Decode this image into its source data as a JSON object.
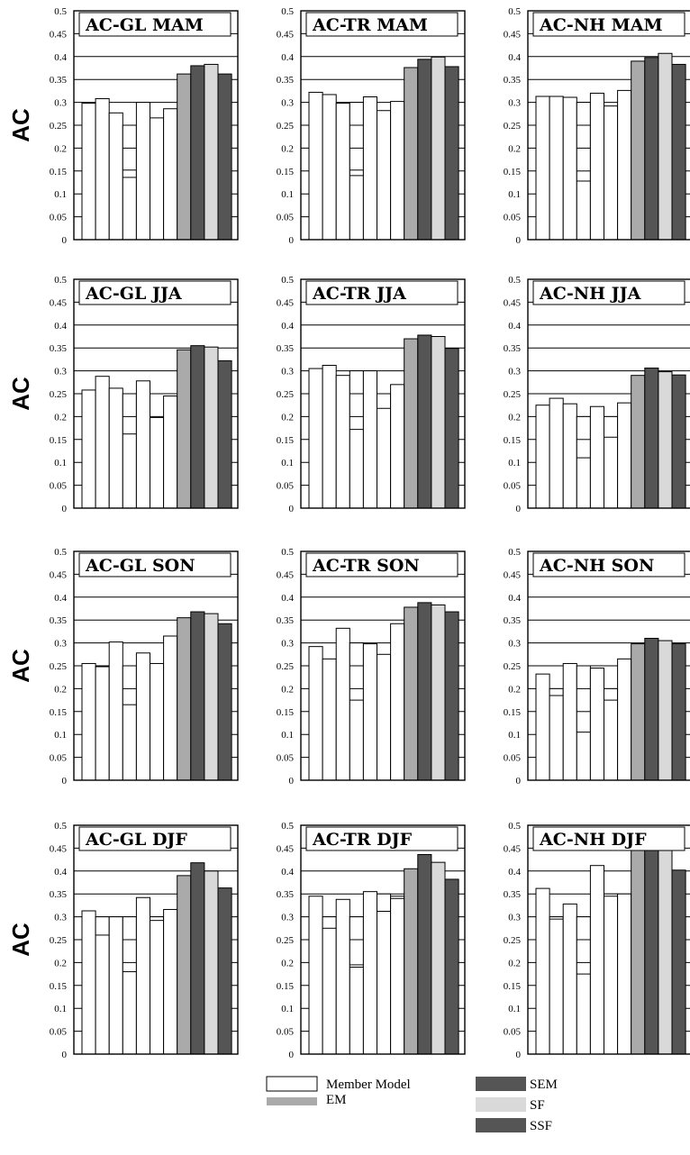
{
  "colors": {
    "member": "#ffffff",
    "EM": "#aaaaaa",
    "SEM": "#555555",
    "SF": "#d9d9d9",
    "SSF": "#555555",
    "frame": "#000000"
  },
  "chart_data": [
    {
      "type": "bar",
      "title": "AC-GL MAM",
      "ylabel": "AC",
      "ylim": [
        0,
        0.5
      ],
      "yticks": [
        "0",
        "0.05",
        "0.1",
        "0.15",
        "0.2",
        "0.25",
        "0.3",
        "0.35",
        "0.4",
        "0.45",
        "0.5"
      ],
      "grid": true,
      "member_models": [
        0.298,
        0.308,
        0.277,
        0.25,
        0.3,
        0.266,
        0.286
      ],
      "member_inner_marks": [
        [],
        [],
        [],
        [
          0.2,
          0.152,
          0.136
        ],
        [],
        [],
        []
      ],
      "series": [
        {
          "name": "EM",
          "value": 0.362
        },
        {
          "name": "SEM",
          "value": 0.38
        },
        {
          "name": "SF",
          "value": 0.383
        },
        {
          "name": "SSF",
          "value": 0.362
        }
      ]
    },
    {
      "type": "bar",
      "title": "AC-TR MAM",
      "ylabel": "",
      "ylim": [
        0,
        0.5
      ],
      "yticks": [
        "0",
        "0.05",
        "0.1",
        "0.15",
        "0.2",
        "0.25",
        "0.3",
        "0.35",
        "0.4",
        "0.45",
        "0.5"
      ],
      "grid": true,
      "member_models": [
        0.322,
        0.317,
        0.298,
        0.3,
        0.312,
        0.282,
        0.302
      ],
      "member_inner_marks": [
        [],
        [],
        [],
        [
          0.25,
          0.2,
          0.152,
          0.14
        ],
        [],
        [],
        []
      ],
      "series": [
        {
          "name": "EM",
          "value": 0.376
        },
        {
          "name": "SEM",
          "value": 0.394
        },
        {
          "name": "SF",
          "value": 0.399
        },
        {
          "name": "SSF",
          "value": 0.378
        }
      ]
    },
    {
      "type": "bar",
      "title": "AC-NH MAM",
      "ylabel": "",
      "ylim": [
        0,
        0.5
      ],
      "yticks": [
        "0",
        "0.05",
        "0.1",
        "0.15",
        "0.2",
        "0.25",
        "0.3",
        "0.35",
        "0.4",
        "0.45",
        "0.5"
      ],
      "grid": true,
      "member_models": [
        0.313,
        0.313,
        0.311,
        0.3,
        0.32,
        0.292,
        0.326
      ],
      "member_inner_marks": [
        [],
        [],
        [],
        [
          0.25,
          0.2,
          0.15,
          0.128
        ],
        [],
        [],
        []
      ],
      "series": [
        {
          "name": "EM",
          "value": 0.39
        },
        {
          "name": "SEM",
          "value": 0.398
        },
        {
          "name": "SF",
          "value": 0.407
        },
        {
          "name": "SSF",
          "value": 0.383
        }
      ]
    },
    {
      "type": "bar",
      "title": "AC-GL JJA",
      "ylabel": "AC",
      "ylim": [
        0,
        0.5
      ],
      "yticks": [
        "0",
        "0.05",
        "0.1",
        "0.15",
        "0.2",
        "0.25",
        "0.3",
        "0.35",
        "0.4",
        "0.45",
        "0.5"
      ],
      "grid": true,
      "member_models": [
        0.258,
        0.288,
        0.262,
        0.25,
        0.278,
        0.198,
        0.245
      ],
      "member_inner_marks": [
        [],
        [],
        [],
        [
          0.2,
          0.162
        ],
        [],
        [],
        []
      ],
      "series": [
        {
          "name": "EM",
          "value": 0.346
        },
        {
          "name": "SEM",
          "value": 0.355
        },
        {
          "name": "SF",
          "value": 0.352
        },
        {
          "name": "SSF",
          "value": 0.322
        }
      ]
    },
    {
      "type": "bar",
      "title": "AC-TR JJA",
      "ylabel": "",
      "ylim": [
        0,
        0.5
      ],
      "yticks": [
        "0",
        "0.05",
        "0.1",
        "0.15",
        "0.2",
        "0.25",
        "0.3",
        "0.35",
        "0.4",
        "0.45",
        "0.5"
      ],
      "grid": true,
      "member_models": [
        0.305,
        0.312,
        0.29,
        0.3,
        0.3,
        0.25,
        0.27
      ],
      "member_inner_marks": [
        [],
        [],
        [],
        [
          0.25,
          0.2,
          0.172
        ],
        [],
        [
          0.218
        ],
        []
      ],
      "series": [
        {
          "name": "EM",
          "value": 0.37
        },
        {
          "name": "SEM",
          "value": 0.378
        },
        {
          "name": "SF",
          "value": 0.375
        },
        {
          "name": "SSF",
          "value": 0.349
        }
      ]
    },
    {
      "type": "bar",
      "title": "AC-NH JJA",
      "ylabel": "",
      "ylim": [
        0,
        0.5
      ],
      "yticks": [
        "0",
        "0.05",
        "0.1",
        "0.15",
        "0.2",
        "0.25",
        "0.3",
        "0.35",
        "0.4",
        "0.45",
        "0.5"
      ],
      "grid": true,
      "member_models": [
        0.225,
        0.24,
        0.228,
        0.2,
        0.222,
        0.2,
        0.23
      ],
      "member_inner_marks": [
        [],
        [],
        [],
        [
          0.15,
          0.11
        ],
        [],
        [
          0.155
        ],
        []
      ],
      "series": [
        {
          "name": "EM",
          "value": 0.29
        },
        {
          "name": "SEM",
          "value": 0.306
        },
        {
          "name": "SF",
          "value": 0.298
        },
        {
          "name": "SSF",
          "value": 0.291
        }
      ]
    },
    {
      "type": "bar",
      "title": "AC-GL SON",
      "ylabel": "AC",
      "ylim": [
        0,
        0.5
      ],
      "yticks": [
        "0",
        "0.05",
        "0.1",
        "0.15",
        "0.2",
        "0.25",
        "0.3",
        "0.35",
        "0.4",
        "0.45",
        "0.5"
      ],
      "grid": true,
      "member_models": [
        0.255,
        0.248,
        0.302,
        0.25,
        0.278,
        0.255,
        0.315
      ],
      "member_inner_marks": [
        [],
        [],
        [],
        [
          0.2,
          0.165
        ],
        [],
        [],
        []
      ],
      "series": [
        {
          "name": "EM",
          "value": 0.355
        },
        {
          "name": "SEM",
          "value": 0.368
        },
        {
          "name": "SF",
          "value": 0.364
        },
        {
          "name": "SSF",
          "value": 0.342
        }
      ]
    },
    {
      "type": "bar",
      "title": "AC-TR SON",
      "ylabel": "",
      "ylim": [
        0,
        0.5
      ],
      "yticks": [
        "0",
        "0.05",
        "0.1",
        "0.15",
        "0.2",
        "0.25",
        "0.3",
        "0.35",
        "0.4",
        "0.45",
        "0.5"
      ],
      "grid": true,
      "member_models": [
        0.292,
        0.265,
        0.332,
        0.3,
        0.298,
        0.275,
        0.342
      ],
      "member_inner_marks": [
        [],
        [],
        [],
        [
          0.25,
          0.2,
          0.175
        ],
        [],
        [],
        []
      ],
      "series": [
        {
          "name": "EM",
          "value": 0.378
        },
        {
          "name": "SEM",
          "value": 0.388
        },
        {
          "name": "SF",
          "value": 0.383
        },
        {
          "name": "SSF",
          "value": 0.368
        }
      ]
    },
    {
      "type": "bar",
      "title": "AC-NH SON",
      "ylabel": "",
      "ylim": [
        0,
        0.5
      ],
      "yticks": [
        "0",
        "0.05",
        "0.1",
        "0.15",
        "0.2",
        "0.25",
        "0.3",
        "0.35",
        "0.4",
        "0.45",
        "0.5"
      ],
      "grid": true,
      "member_models": [
        0.232,
        0.2,
        0.255,
        0.25,
        0.245,
        0.2,
        0.265
      ],
      "member_inner_marks": [
        [],
        [
          0.185
        ],
        [],
        [
          0.2,
          0.15,
          0.105
        ],
        [],
        [
          0.175
        ],
        []
      ],
      "series": [
        {
          "name": "EM",
          "value": 0.298
        },
        {
          "name": "SEM",
          "value": 0.31
        },
        {
          "name": "SF",
          "value": 0.305
        },
        {
          "name": "SSF",
          "value": 0.298
        }
      ]
    },
    {
      "type": "bar",
      "title": "AC-GL DJF",
      "ylabel": "AC",
      "ylim": [
        0,
        0.5
      ],
      "yticks": [
        "0",
        "0.05",
        "0.1",
        "0.15",
        "0.2",
        "0.25",
        "0.3",
        "0.35",
        "0.4",
        "0.45",
        "0.5"
      ],
      "grid": true,
      "member_models": [
        0.313,
        0.3,
        0.3,
        0.3,
        0.342,
        0.3,
        0.316
      ],
      "member_inner_marks": [
        [],
        [
          0.26
        ],
        [],
        [
          0.25,
          0.2,
          0.18
        ],
        [],
        [
          0.292
        ],
        []
      ],
      "series": [
        {
          "name": "EM",
          "value": 0.39
        },
        {
          "name": "SEM",
          "value": 0.418
        },
        {
          "name": "SF",
          "value": 0.4
        },
        {
          "name": "SSF",
          "value": 0.363
        }
      ]
    },
    {
      "type": "bar",
      "title": "AC-TR DJF",
      "ylabel": "",
      "ylim": [
        0,
        0.5
      ],
      "yticks": [
        "0",
        "0.05",
        "0.1",
        "0.15",
        "0.2",
        "0.25",
        "0.3",
        "0.35",
        "0.4",
        "0.45",
        "0.5"
      ],
      "grid": true,
      "member_models": [
        0.345,
        0.3,
        0.338,
        0.3,
        0.355,
        0.35,
        0.345
      ],
      "member_inner_marks": [
        [],
        [
          0.275
        ],
        [],
        [
          0.25,
          0.195,
          0.19
        ],
        [],
        [
          0.312
        ],
        [
          0.34
        ]
      ],
      "series": [
        {
          "name": "EM",
          "value": 0.405
        },
        {
          "name": "SEM",
          "value": 0.436
        },
        {
          "name": "SF",
          "value": 0.419
        },
        {
          "name": "SSF",
          "value": 0.382
        }
      ]
    },
    {
      "type": "bar",
      "title": "AC-NH DJF",
      "ylabel": "",
      "ylim": [
        0,
        0.5
      ],
      "yticks": [
        "0",
        "0.05",
        "0.1",
        "0.15",
        "0.2",
        "0.25",
        "0.3",
        "0.35",
        "0.4",
        "0.45",
        "0.5"
      ],
      "grid": true,
      "member_models": [
        0.362,
        0.3,
        0.328,
        0.3,
        0.412,
        0.35,
        0.35
      ],
      "member_inner_marks": [
        [],
        [
          0.295
        ],
        [],
        [
          0.25,
          0.2,
          0.175
        ],
        [],
        [
          0.345
        ],
        []
      ],
      "series": [
        {
          "name": "EM",
          "value": 0.455
        },
        {
          "name": "SEM",
          "value": 0.465
        },
        {
          "name": "SF",
          "value": 0.46
        },
        {
          "name": "SSF",
          "value": 0.402
        }
      ]
    }
  ],
  "legend": [
    {
      "label": "Member Model",
      "color": "#ffffff"
    },
    {
      "label": "EM",
      "color": "#aaaaaa"
    },
    {
      "label": "SEM",
      "color": "#555555"
    },
    {
      "label": "SF",
      "color": "#d9d9d9"
    },
    {
      "label": "SSF",
      "color": "#555555"
    }
  ]
}
